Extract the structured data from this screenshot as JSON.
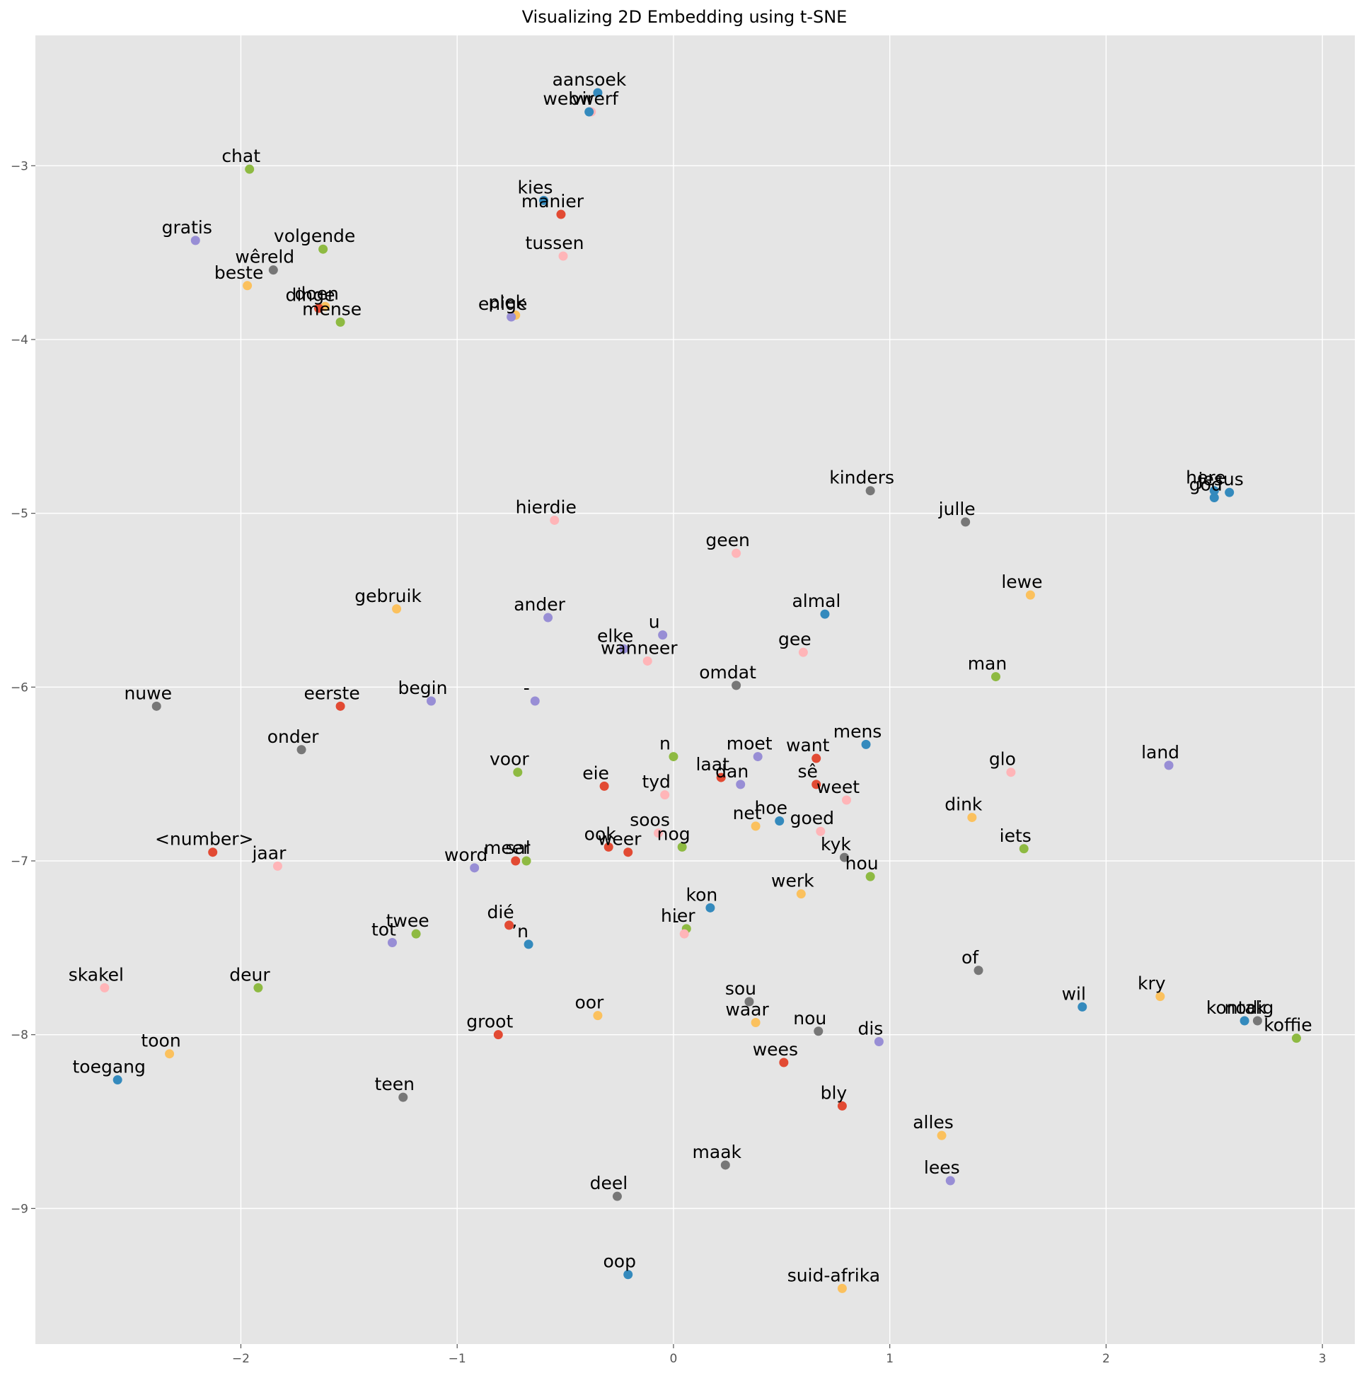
{
  "chart_data": {
    "type": "scatter",
    "title": "Visualizing 2D Embedding using t-SNE",
    "xlabel": "",
    "ylabel": "",
    "xlim": [
      -2.95,
      3.15
    ],
    "ylim": [
      -9.78,
      -2.25
    ],
    "x_ticks": [
      -2,
      -1,
      0,
      1,
      2,
      3
    ],
    "x_tick_labels": [
      "−2",
      "−1",
      "0",
      "1",
      "2",
      "3"
    ],
    "y_ticks": [
      -3,
      -4,
      -5,
      -6,
      -7,
      -8,
      -9
    ],
    "y_tick_labels": [
      "−3",
      "−4",
      "−5",
      "−6",
      "−7",
      "−8",
      "−9"
    ],
    "grid": true,
    "background": "#e5e5e5",
    "grid_color": "#ffffff",
    "palette": {
      "red": "#e24a33",
      "blue": "#348abd",
      "purple": "#988ed5",
      "gray": "#777777",
      "yellow": "#fbc15e",
      "green": "#8eba42",
      "pink": "#ffb5b8"
    },
    "points": [
      {
        "label": "aansoek",
        "x": -0.35,
        "y": -2.58,
        "c": "blue"
      },
      {
        "label": "vir",
        "x": -0.38,
        "y": -2.69,
        "c": "pink"
      },
      {
        "label": "webwerf",
        "x": -0.39,
        "y": -2.69,
        "c": "blue"
      },
      {
        "label": "chat",
        "x": -1.96,
        "y": -3.02,
        "c": "green"
      },
      {
        "label": "kies",
        "x": -0.6,
        "y": -3.2,
        "c": "blue"
      },
      {
        "label": "manier",
        "x": -0.52,
        "y": -3.28,
        "c": "red"
      },
      {
        "label": "gratis",
        "x": -2.21,
        "y": -3.43,
        "c": "purple"
      },
      {
        "label": "volgende",
        "x": -1.62,
        "y": -3.48,
        "c": "green"
      },
      {
        "label": "tussen",
        "x": -0.51,
        "y": -3.52,
        "c": "pink"
      },
      {
        "label": "wêreld",
        "x": -1.85,
        "y": -3.6,
        "c": "gray"
      },
      {
        "label": "beste",
        "x": -1.97,
        "y": -3.69,
        "c": "yellow"
      },
      {
        "label": "doen",
        "x": -1.61,
        "y": -3.81,
        "c": "yellow"
      },
      {
        "label": "dinge",
        "x": -1.64,
        "y": -3.82,
        "c": "red"
      },
      {
        "label": "mense",
        "x": -1.54,
        "y": -3.9,
        "c": "green"
      },
      {
        "label": "plek",
        "x": -0.73,
        "y": -3.86,
        "c": "yellow"
      },
      {
        "label": "enige",
        "x": -0.75,
        "y": -3.87,
        "c": "purple"
      },
      {
        "label": "kinders",
        "x": 0.91,
        "y": -4.87,
        "c": "gray"
      },
      {
        "label": "hierdie",
        "x": -0.55,
        "y": -5.04,
        "c": "pink"
      },
      {
        "label": "julle",
        "x": 1.35,
        "y": -5.05,
        "c": "gray"
      },
      {
        "label": "jesus",
        "x": 2.57,
        "y": -4.88,
        "c": "blue"
      },
      {
        "label": "here",
        "x": 2.5,
        "y": -4.87,
        "c": "blue"
      },
      {
        "label": "god",
        "x": 2.5,
        "y": -4.91,
        "c": "blue"
      },
      {
        "label": "geen",
        "x": 0.29,
        "y": -5.23,
        "c": "pink"
      },
      {
        "label": "lewe",
        "x": 1.65,
        "y": -5.47,
        "c": "yellow"
      },
      {
        "label": "gebruik",
        "x": -1.28,
        "y": -5.55,
        "c": "yellow"
      },
      {
        "label": "almal",
        "x": 0.7,
        "y": -5.58,
        "c": "blue"
      },
      {
        "label": "ander",
        "x": -0.58,
        "y": -5.6,
        "c": "purple"
      },
      {
        "label": "u",
        "x": -0.05,
        "y": -5.7,
        "c": "purple"
      },
      {
        "label": "elke",
        "x": -0.23,
        "y": -5.78,
        "c": "purple"
      },
      {
        "label": "gee",
        "x": 0.6,
        "y": -5.8,
        "c": "pink"
      },
      {
        "label": "wanneer",
        "x": -0.12,
        "y": -5.85,
        "c": "pink"
      },
      {
        "label": "man",
        "x": 1.49,
        "y": -5.94,
        "c": "green"
      },
      {
        "label": "omdat",
        "x": 0.29,
        "y": -5.99,
        "c": "gray"
      },
      {
        "label": "nuwe",
        "x": -2.39,
        "y": -6.11,
        "c": "gray"
      },
      {
        "label": "eerste",
        "x": -1.54,
        "y": -6.11,
        "c": "red"
      },
      {
        "label": "begin",
        "x": -1.12,
        "y": -6.08,
        "c": "purple"
      },
      {
        "label": "-",
        "x": -0.64,
        "y": -6.08,
        "c": "purple"
      },
      {
        "label": "mens",
        "x": 0.89,
        "y": -6.33,
        "c": "blue"
      },
      {
        "label": "onder",
        "x": -1.72,
        "y": -6.36,
        "c": "gray"
      },
      {
        "label": "n",
        "x": 0.0,
        "y": -6.4,
        "c": "green"
      },
      {
        "label": "moet",
        "x": 0.39,
        "y": -6.4,
        "c": "purple"
      },
      {
        "label": "want",
        "x": 0.66,
        "y": -6.41,
        "c": "red"
      },
      {
        "label": "land",
        "x": 2.29,
        "y": -6.45,
        "c": "purple"
      },
      {
        "label": "glo",
        "x": 1.56,
        "y": -6.49,
        "c": "pink"
      },
      {
        "label": "voor",
        "x": -0.72,
        "y": -6.49,
        "c": "green"
      },
      {
        "label": "laat",
        "x": 0.22,
        "y": -6.52,
        "c": "red"
      },
      {
        "label": "dan",
        "x": 0.31,
        "y": -6.56,
        "c": "purple"
      },
      {
        "label": "sê",
        "x": 0.66,
        "y": -6.56,
        "c": "red"
      },
      {
        "label": "eie",
        "x": -0.32,
        "y": -6.57,
        "c": "red"
      },
      {
        "label": "tyd",
        "x": -0.04,
        "y": -6.62,
        "c": "pink"
      },
      {
        "label": "weet",
        "x": 0.8,
        "y": -6.65,
        "c": "pink"
      },
      {
        "label": "dink",
        "x": 1.38,
        "y": -6.75,
        "c": "yellow"
      },
      {
        "label": "hoe",
        "x": 0.49,
        "y": -6.77,
        "c": "blue"
      },
      {
        "label": "net",
        "x": 0.38,
        "y": -6.8,
        "c": "yellow"
      },
      {
        "label": "goed",
        "x": 0.68,
        "y": -6.83,
        "c": "pink"
      },
      {
        "label": "soos",
        "x": -0.07,
        "y": -6.84,
        "c": "pink"
      },
      {
        "label": "nog",
        "x": 0.04,
        "y": -6.92,
        "c": "green"
      },
      {
        "label": "iets",
        "x": 1.62,
        "y": -6.93,
        "c": "green"
      },
      {
        "label": "ook",
        "x": -0.3,
        "y": -6.92,
        "c": "red"
      },
      {
        "label": "weer",
        "x": -0.21,
        "y": -6.95,
        "c": "red"
      },
      {
        "label": "<number>",
        "x": -2.13,
        "y": -6.95,
        "c": "red"
      },
      {
        "label": "kyk",
        "x": 0.79,
        "y": -6.98,
        "c": "gray"
      },
      {
        "label": "meer",
        "x": -0.73,
        "y": -7.0,
        "c": "red"
      },
      {
        "label": "sal",
        "x": -0.68,
        "y": -7.0,
        "c": "green"
      },
      {
        "label": "jaar",
        "x": -1.83,
        "y": -7.03,
        "c": "pink"
      },
      {
        "label": "word",
        "x": -0.92,
        "y": -7.04,
        "c": "purple"
      },
      {
        "label": "hou",
        "x": 0.91,
        "y": -7.09,
        "c": "green"
      },
      {
        "label": "werk",
        "x": 0.59,
        "y": -7.19,
        "c": "yellow"
      },
      {
        "label": "kon",
        "x": 0.17,
        "y": -7.27,
        "c": "blue"
      },
      {
        "label": "dié",
        "x": -0.76,
        "y": -7.37,
        "c": "red"
      },
      {
        "label": "hier",
        "x": 0.06,
        "y": -7.39,
        "c": "green"
      },
      {
        "label": "-",
        "x": 0.05,
        "y": -7.42,
        "c": "pink"
      },
      {
        "label": "twee",
        "x": -1.19,
        "y": -7.42,
        "c": "green"
      },
      {
        "label": "tot",
        "x": -1.3,
        "y": -7.47,
        "c": "purple"
      },
      {
        "label": "’n",
        "x": -0.67,
        "y": -7.48,
        "c": "blue"
      },
      {
        "label": "of",
        "x": 1.41,
        "y": -7.63,
        "c": "gray"
      },
      {
        "label": "skakel",
        "x": -2.63,
        "y": -7.73,
        "c": "pink"
      },
      {
        "label": "deur",
        "x": -1.92,
        "y": -7.73,
        "c": "green"
      },
      {
        "label": "kry",
        "x": 2.25,
        "y": -7.78,
        "c": "yellow"
      },
      {
        "label": "sou",
        "x": 0.35,
        "y": -7.81,
        "c": "gray"
      },
      {
        "label": "wil",
        "x": 1.89,
        "y": -7.84,
        "c": "blue"
      },
      {
        "label": "oor",
        "x": -0.35,
        "y": -7.89,
        "c": "yellow"
      },
      {
        "label": "kontak",
        "x": 2.64,
        "y": -7.92,
        "c": "blue"
      },
      {
        "label": "nodig",
        "x": 2.7,
        "y": -7.92,
        "c": "gray"
      },
      {
        "label": "waar",
        "x": 0.38,
        "y": -7.93,
        "c": "yellow"
      },
      {
        "label": "nou",
        "x": 0.67,
        "y": -7.98,
        "c": "gray"
      },
      {
        "label": "groot",
        "x": -0.81,
        "y": -8.0,
        "c": "red"
      },
      {
        "label": "koffie",
        "x": 2.88,
        "y": -8.02,
        "c": "green"
      },
      {
        "label": "dis",
        "x": 0.95,
        "y": -8.04,
        "c": "purple"
      },
      {
        "label": "toon",
        "x": -2.33,
        "y": -8.11,
        "c": "yellow"
      },
      {
        "label": "wees",
        "x": 0.51,
        "y": -8.16,
        "c": "red"
      },
      {
        "label": "toegang",
        "x": -2.57,
        "y": -8.26,
        "c": "blue"
      },
      {
        "label": "teen",
        "x": -1.25,
        "y": -8.36,
        "c": "gray"
      },
      {
        "label": "bly",
        "x": 0.78,
        "y": -8.41,
        "c": "red"
      },
      {
        "label": "alles",
        "x": 1.24,
        "y": -8.58,
        "c": "yellow"
      },
      {
        "label": "maak",
        "x": 0.24,
        "y": -8.75,
        "c": "gray"
      },
      {
        "label": "lees",
        "x": 1.28,
        "y": -8.84,
        "c": "purple"
      },
      {
        "label": "deel",
        "x": -0.26,
        "y": -8.93,
        "c": "gray"
      },
      {
        "label": "oop",
        "x": -0.21,
        "y": -9.38,
        "c": "blue"
      },
      {
        "label": "suid-afrika",
        "x": 0.78,
        "y": -9.46,
        "c": "yellow"
      }
    ]
  }
}
